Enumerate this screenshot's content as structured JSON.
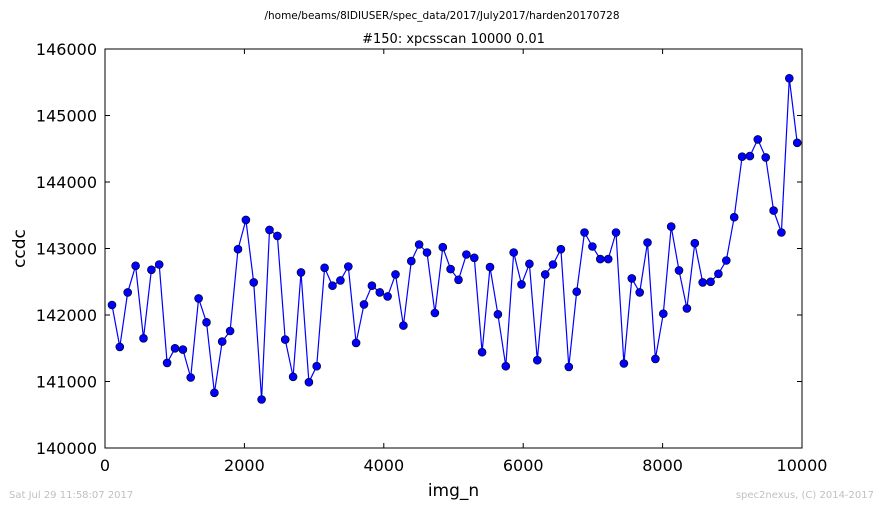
{
  "suptitle": "/home/beams/8IDIUSER/spec_data/2017/July2017/harden20170728",
  "footer": {
    "timestamp": "Sat Jul 29 11:58:07 2017",
    "credit": "spec2nexus, (C) 2014-2017"
  },
  "colors": {
    "line": "#0000ff",
    "marker": "#0000ff",
    "marker_edge": "#000000"
  },
  "chart_data": {
    "type": "line",
    "title": "#150: xpcsscan 10000 0.01",
    "xlabel": "img_n",
    "ylabel": "ccdc",
    "xlim": [
      0,
      10000
    ],
    "ylim": [
      140000,
      146000
    ],
    "xticks": [
      0,
      2000,
      4000,
      6000,
      8000,
      10000
    ],
    "yticks": [
      140000,
      141000,
      142000,
      143000,
      144000,
      145000,
      146000
    ],
    "grid": false,
    "series": [
      {
        "x": [
          100,
          213,
          326,
          439,
          552,
          665,
          778,
          891,
          1004,
          1117,
          1230,
          1343,
          1456,
          1569,
          1682,
          1795,
          1908,
          2021,
          2134,
          2247,
          2360,
          2473,
          2586,
          2699,
          2812,
          2925,
          3038,
          3151,
          3264,
          3377,
          3490,
          3603,
          3716,
          3829,
          3942,
          4055,
          4168,
          4281,
          4394,
          4507,
          4620,
          4733,
          4846,
          4959,
          5072,
          5185,
          5298,
          5411,
          5524,
          5637,
          5750,
          5863,
          5976,
          6089,
          6202,
          6315,
          6428,
          6541,
          6654,
          6767,
          6880,
          6993,
          7106,
          7219,
          7332,
          7445,
          7558,
          7671,
          7784,
          7897,
          8010,
          8123,
          8236,
          8349,
          8462,
          8575,
          8688,
          8801,
          8914,
          9027,
          9140,
          9253,
          9366,
          9479,
          9592,
          9705,
          9818,
          9931
        ],
        "y": [
          142150,
          141520,
          142340,
          142740,
          141650,
          142680,
          142760,
          141280,
          141500,
          141480,
          141060,
          142250,
          141890,
          140830,
          141600,
          141760,
          142990,
          143430,
          142490,
          140730,
          143280,
          143190,
          141630,
          141070,
          142640,
          140990,
          141230,
          142710,
          142440,
          142520,
          142730,
          141580,
          142160,
          142440,
          142340,
          142280,
          142610,
          141840,
          142810,
          143060,
          142940,
          142030,
          143020,
          142690,
          142530,
          142910,
          142860,
          141440,
          142720,
          142010,
          141230,
          142940,
          142460,
          142770,
          141320,
          142610,
          142760,
          142990,
          141220,
          142350,
          143240,
          143030,
          142840,
          142840,
          143240,
          141270,
          142550,
          142340,
          143090,
          141340,
          142020,
          143330,
          142670,
          142100,
          143080,
          142490,
          142500,
          142620,
          142820,
          143470,
          144380,
          144390,
          144640,
          144370,
          143570,
          143240,
          145560,
          144590
        ]
      }
    ]
  }
}
